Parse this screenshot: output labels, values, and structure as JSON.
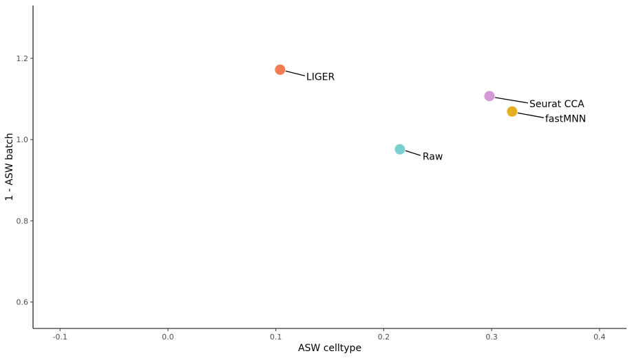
{
  "chart_data": {
    "type": "scatter",
    "title": "",
    "xlabel": "ASW celltype",
    "ylabel": "1 - ASW batch",
    "xlim": [
      -0.125,
      0.425
    ],
    "ylim": [
      0.535,
      1.33
    ],
    "x_ticks": [
      -0.1,
      0.0,
      0.1,
      0.2,
      0.3,
      0.4
    ],
    "x_tick_labels": [
      "-0.1",
      "0.0",
      "0.1",
      "0.2",
      "0.3",
      "0.4"
    ],
    "y_ticks": [
      0.6,
      0.8,
      1.0,
      1.2
    ],
    "y_tick_labels": [
      "0.6",
      "0.8",
      "1.0",
      "1.2"
    ],
    "grid": false,
    "legend": "none",
    "points": [
      {
        "label": "LIGER",
        "x": 0.104,
        "y": 1.172,
        "color": "#F47C52"
      },
      {
        "label": "Seurat CCA",
        "x": 0.298,
        "y": 1.107,
        "color": "#D39AD6"
      },
      {
        "label": "fastMNN",
        "x": 0.319,
        "y": 1.069,
        "color": "#E6AE21"
      },
      {
        "label": "Raw",
        "x": 0.215,
        "y": 0.976,
        "color": "#7CCFD1"
      }
    ]
  }
}
